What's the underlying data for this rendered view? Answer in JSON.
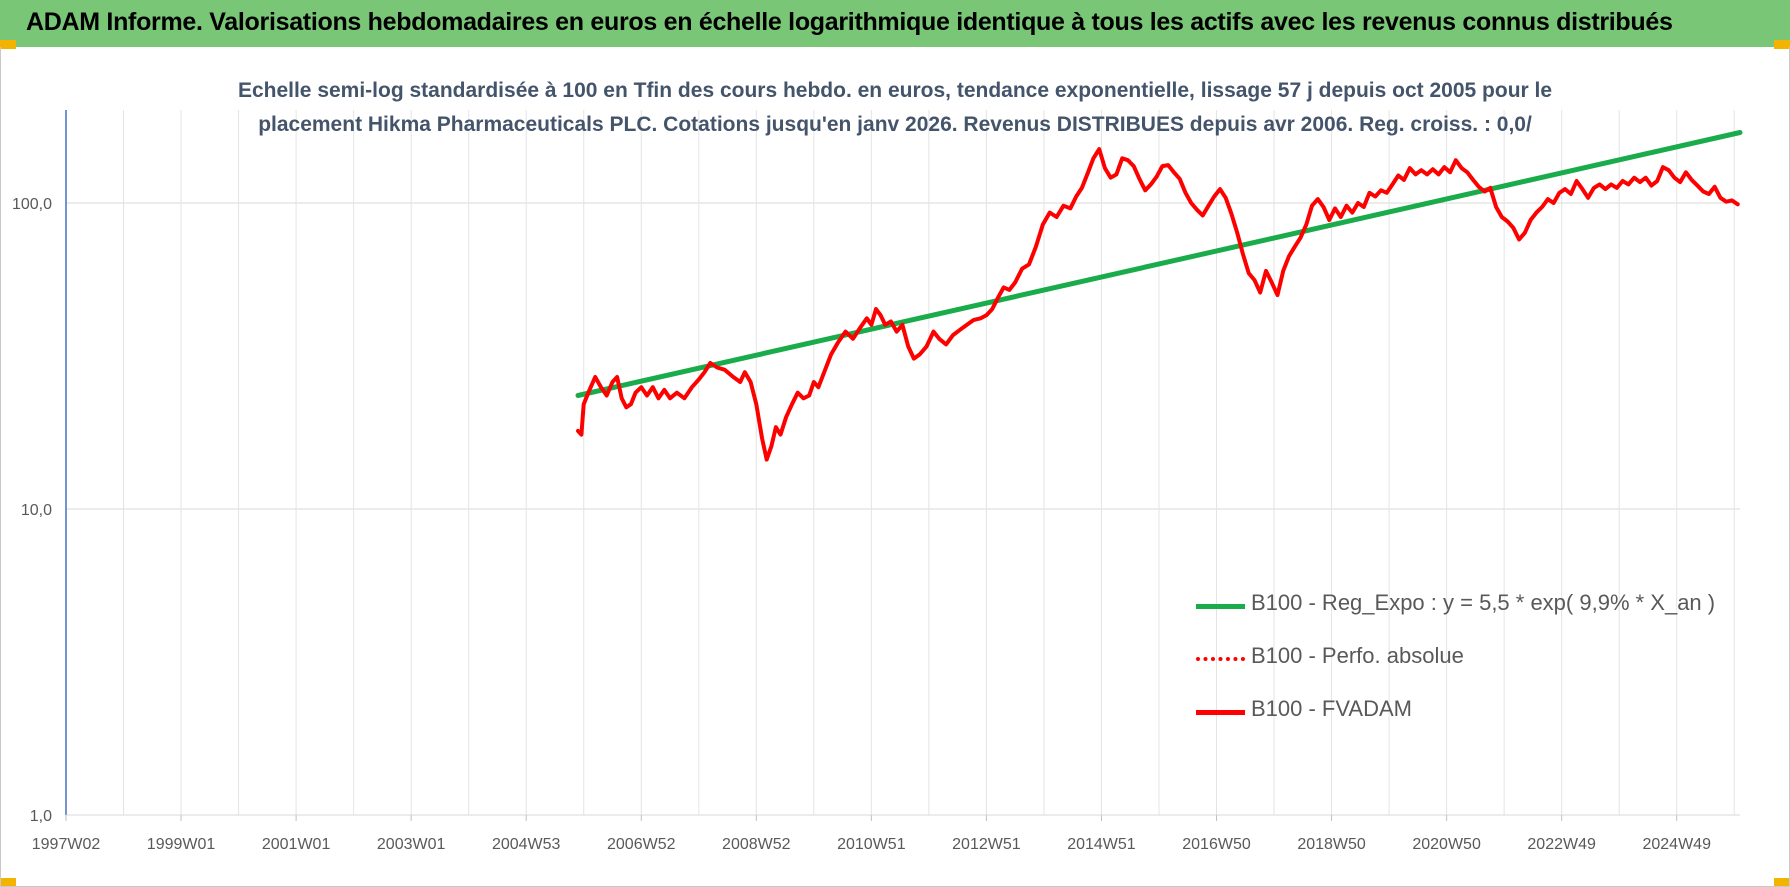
{
  "banner": {
    "title": "ADAM Informe. Valorisations hebdomadaires en euros en échelle logarithmique identique à tous les actifs avec les revenus connus distribués",
    "background_color": "#78c676",
    "corner_color": "#f2b400"
  },
  "chart_data": {
    "type": "line",
    "title_lines": [
      "Echelle semi-log standardisée à 100 en Tfin des cours hebdo. en euros, tendance exponentielle, lissage 57 j depuis oct 2005 pour le",
      "placement Hikma Pharmaceuticals PLC. Cotations jusqu'en janv 2026. Revenus DISTRIBUES depuis avr 2006. Reg. croiss. : 0,0/"
    ],
    "y_scale": "log",
    "ylim": [
      1,
      200
    ],
    "y_ticks": [
      {
        "value": 1,
        "label": "1,0"
      },
      {
        "value": 10,
        "label": "10,0"
      },
      {
        "value": 100,
        "label": "100,0"
      }
    ],
    "x_range_years": [
      1997.0,
      2026.1
    ],
    "x_ticks": [
      {
        "year": 1997.0,
        "label": "1997W02"
      },
      {
        "year": 1999.0,
        "label": "1999W01"
      },
      {
        "year": 2001.0,
        "label": "2001W01"
      },
      {
        "year": 2003.0,
        "label": "2003W01"
      },
      {
        "year": 2005.0,
        "label": "2004W53"
      },
      {
        "year": 2007.0,
        "label": "2006W52"
      },
      {
        "year": 2009.0,
        "label": "2008W52"
      },
      {
        "year": 2011.0,
        "label": "2010W51"
      },
      {
        "year": 2013.0,
        "label": "2012W51"
      },
      {
        "year": 2015.0,
        "label": "2014W51"
      },
      {
        "year": 2017.0,
        "label": "2016W50"
      },
      {
        "year": 2019.0,
        "label": "2018W50"
      },
      {
        "year": 2021.0,
        "label": "2020W50"
      },
      {
        "year": 2023.0,
        "label": "2022W49"
      },
      {
        "year": 2025.0,
        "label": "2024W49"
      }
    ],
    "grid": "vertical and horizontal",
    "legend_position": "lower-right",
    "series": [
      {
        "name": "B100 - Reg_Expo : y = 5,5 * exp( 9,9% *  X_an )",
        "color": "#1aab4b",
        "style": "solid",
        "points": [
          [
            2005.9,
            23.5
          ],
          [
            2026.1,
            170
          ]
        ]
      },
      {
        "name": "B100 - Perfo. absolue",
        "color": "#ff0000",
        "style": "dotted",
        "points": []
      },
      {
        "name": "B100 - FVADAM",
        "color": "#ff0000",
        "style": "solid",
        "points": [
          [
            2005.9,
            18
          ],
          [
            2005.96,
            17.5
          ],
          [
            2006.0,
            22
          ],
          [
            2006.08,
            24
          ],
          [
            2006.2,
            27
          ],
          [
            2006.3,
            25
          ],
          [
            2006.4,
            23.5
          ],
          [
            2006.5,
            26
          ],
          [
            2006.58,
            27
          ],
          [
            2006.66,
            23
          ],
          [
            2006.74,
            21.5
          ],
          [
            2006.82,
            22
          ],
          [
            2006.9,
            24
          ],
          [
            2007.0,
            25
          ],
          [
            2007.1,
            23.5
          ],
          [
            2007.2,
            25
          ],
          [
            2007.3,
            23
          ],
          [
            2007.4,
            24.5
          ],
          [
            2007.5,
            23
          ],
          [
            2007.62,
            24
          ],
          [
            2007.75,
            23
          ],
          [
            2007.88,
            25
          ],
          [
            2008.0,
            26.5
          ],
          [
            2008.1,
            28
          ],
          [
            2008.2,
            30
          ],
          [
            2008.32,
            29
          ],
          [
            2008.45,
            28.5
          ],
          [
            2008.6,
            27
          ],
          [
            2008.72,
            26
          ],
          [
            2008.8,
            28
          ],
          [
            2008.9,
            26
          ],
          [
            2009.0,
            22
          ],
          [
            2009.1,
            17
          ],
          [
            2009.18,
            14.5
          ],
          [
            2009.26,
            16
          ],
          [
            2009.34,
            18.5
          ],
          [
            2009.42,
            17.5
          ],
          [
            2009.52,
            20
          ],
          [
            2009.62,
            22
          ],
          [
            2009.72,
            24
          ],
          [
            2009.82,
            23
          ],
          [
            2009.92,
            23.5
          ],
          [
            2010.0,
            26
          ],
          [
            2010.08,
            25
          ],
          [
            2010.18,
            28
          ],
          [
            2010.3,
            32
          ],
          [
            2010.42,
            35
          ],
          [
            2010.55,
            38
          ],
          [
            2010.68,
            36
          ],
          [
            2010.8,
            39
          ],
          [
            2010.92,
            42
          ],
          [
            2011.0,
            40
          ],
          [
            2011.08,
            45
          ],
          [
            2011.16,
            43
          ],
          [
            2011.24,
            40
          ],
          [
            2011.34,
            41
          ],
          [
            2011.44,
            38
          ],
          [
            2011.54,
            40
          ],
          [
            2011.64,
            34
          ],
          [
            2011.74,
            31
          ],
          [
            2011.84,
            32
          ],
          [
            2011.96,
            34
          ],
          [
            2012.08,
            38
          ],
          [
            2012.18,
            36
          ],
          [
            2012.3,
            34.5
          ],
          [
            2012.42,
            37
          ],
          [
            2012.54,
            38.5
          ],
          [
            2012.66,
            40
          ],
          [
            2012.78,
            41.5
          ],
          [
            2012.9,
            42
          ],
          [
            2013.0,
            43
          ],
          [
            2013.1,
            45
          ],
          [
            2013.2,
            49
          ],
          [
            2013.3,
            53
          ],
          [
            2013.4,
            52
          ],
          [
            2013.5,
            55
          ],
          [
            2013.62,
            61
          ],
          [
            2013.74,
            63
          ],
          [
            2013.86,
            72
          ],
          [
            2013.98,
            85
          ],
          [
            2014.1,
            93
          ],
          [
            2014.22,
            90
          ],
          [
            2014.34,
            98
          ],
          [
            2014.46,
            96
          ],
          [
            2014.56,
            105
          ],
          [
            2014.66,
            112
          ],
          [
            2014.76,
            125
          ],
          [
            2014.86,
            140
          ],
          [
            2014.96,
            150
          ],
          [
            2015.06,
            130
          ],
          [
            2015.16,
            121
          ],
          [
            2015.26,
            124
          ],
          [
            2015.36,
            140
          ],
          [
            2015.46,
            138
          ],
          [
            2015.56,
            132
          ],
          [
            2015.66,
            120
          ],
          [
            2015.76,
            110
          ],
          [
            2015.86,
            115
          ],
          [
            2015.96,
            122
          ],
          [
            2016.06,
            132
          ],
          [
            2016.16,
            133
          ],
          [
            2016.26,
            126
          ],
          [
            2016.36,
            120
          ],
          [
            2016.46,
            108
          ],
          [
            2016.56,
            100
          ],
          [
            2016.66,
            95
          ],
          [
            2016.76,
            91
          ],
          [
            2016.86,
            98
          ],
          [
            2016.96,
            105
          ],
          [
            2017.06,
            111
          ],
          [
            2017.16,
            104
          ],
          [
            2017.26,
            92
          ],
          [
            2017.36,
            80
          ],
          [
            2017.46,
            68
          ],
          [
            2017.56,
            59
          ],
          [
            2017.66,
            56
          ],
          [
            2017.76,
            51
          ],
          [
            2017.86,
            60
          ],
          [
            2017.96,
            55
          ],
          [
            2018.06,
            50
          ],
          [
            2018.16,
            60
          ],
          [
            2018.26,
            67
          ],
          [
            2018.36,
            72
          ],
          [
            2018.46,
            77
          ],
          [
            2018.56,
            85
          ],
          [
            2018.66,
            98
          ],
          [
            2018.76,
            103
          ],
          [
            2018.86,
            97
          ],
          [
            2018.96,
            88
          ],
          [
            2019.06,
            96
          ],
          [
            2019.16,
            90
          ],
          [
            2019.26,
            98
          ],
          [
            2019.36,
            93
          ],
          [
            2019.46,
            100
          ],
          [
            2019.56,
            97
          ],
          [
            2019.66,
            108
          ],
          [
            2019.76,
            105
          ],
          [
            2019.86,
            110
          ],
          [
            2019.96,
            108
          ],
          [
            2020.06,
            115
          ],
          [
            2020.16,
            123
          ],
          [
            2020.26,
            119
          ],
          [
            2020.36,
            130
          ],
          [
            2020.46,
            124
          ],
          [
            2020.56,
            128
          ],
          [
            2020.66,
            124
          ],
          [
            2020.76,
            129
          ],
          [
            2020.86,
            124
          ],
          [
            2020.96,
            131
          ],
          [
            2021.06,
            126
          ],
          [
            2021.16,
            138
          ],
          [
            2021.26,
            130
          ],
          [
            2021.36,
            126
          ],
          [
            2021.46,
            119
          ],
          [
            2021.56,
            113
          ],
          [
            2021.66,
            109
          ],
          [
            2021.76,
            112
          ],
          [
            2021.86,
            97
          ],
          [
            2021.96,
            90
          ],
          [
            2022.06,
            87
          ],
          [
            2022.16,
            83
          ],
          [
            2022.26,
            76
          ],
          [
            2022.36,
            80
          ],
          [
            2022.46,
            88
          ],
          [
            2022.56,
            93
          ],
          [
            2022.66,
            97
          ],
          [
            2022.76,
            103
          ],
          [
            2022.86,
            100
          ],
          [
            2022.96,
            108
          ],
          [
            2023.06,
            111
          ],
          [
            2023.16,
            107
          ],
          [
            2023.26,
            118
          ],
          [
            2023.36,
            111
          ],
          [
            2023.46,
            104
          ],
          [
            2023.56,
            112
          ],
          [
            2023.66,
            115
          ],
          [
            2023.76,
            111
          ],
          [
            2023.86,
            115
          ],
          [
            2023.96,
            112
          ],
          [
            2024.06,
            118
          ],
          [
            2024.16,
            115
          ],
          [
            2024.26,
            121
          ],
          [
            2024.36,
            117
          ],
          [
            2024.46,
            121
          ],
          [
            2024.56,
            114
          ],
          [
            2024.66,
            118
          ],
          [
            2024.76,
            131
          ],
          [
            2024.86,
            128
          ],
          [
            2024.96,
            121
          ],
          [
            2025.06,
            117
          ],
          [
            2025.16,
            126
          ],
          [
            2025.26,
            119
          ],
          [
            2025.36,
            114
          ],
          [
            2025.46,
            109
          ],
          [
            2025.56,
            107
          ],
          [
            2025.66,
            113
          ],
          [
            2025.76,
            104
          ],
          [
            2025.86,
            101
          ],
          [
            2025.96,
            102
          ],
          [
            2026.06,
            99
          ]
        ]
      }
    ]
  }
}
